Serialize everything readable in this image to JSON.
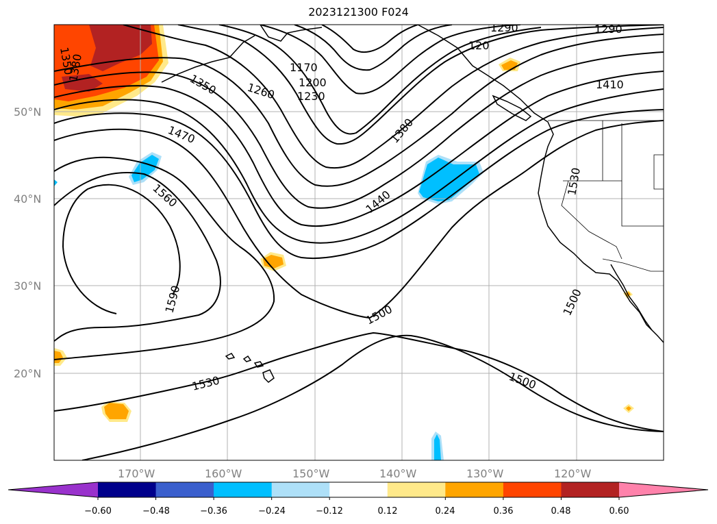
{
  "title": "2023121300 F024",
  "colors": {
    "grid": "#b0b0b0",
    "contour": "#000000",
    "coast": "#000000",
    "neg_light": "#aee0f8",
    "neg_med": "#00bfff",
    "pos_light": "#ffe98a",
    "pos_med": "#ffa500",
    "pos_strong": "#ff4500",
    "pos_vstrong": "#b22222"
  },
  "lat_labels": [
    "50°N",
    "40°N",
    "30°N",
    "20°N"
  ],
  "lon_labels": [
    "170°W",
    "160°W",
    "150°W",
    "140°W",
    "130°W",
    "120°W"
  ],
  "contour_labels": [
    "1350",
    "1380",
    "1170",
    "1200",
    "1230",
    "1260",
    "1350",
    "1290",
    "1290",
    "120",
    "1410",
    "1380",
    "1470",
    "1560",
    "1440",
    "1530",
    "1590",
    "1500",
    "1500",
    "1530",
    "1500"
  ],
  "colorbar": {
    "colors": [
      "#9932cc",
      "#00008b",
      "#3a5fcd",
      "#00bfff",
      "#aee0f8",
      "#ffffff",
      "#ffe98a",
      "#ffa500",
      "#ff4500",
      "#b22222",
      "#ff82ab"
    ],
    "tick_labels": [
      "−0.60",
      "−0.48",
      "−0.36",
      "−0.24",
      "−0.12",
      "0.12",
      "0.24",
      "0.36",
      "0.48",
      "0.60"
    ]
  }
}
